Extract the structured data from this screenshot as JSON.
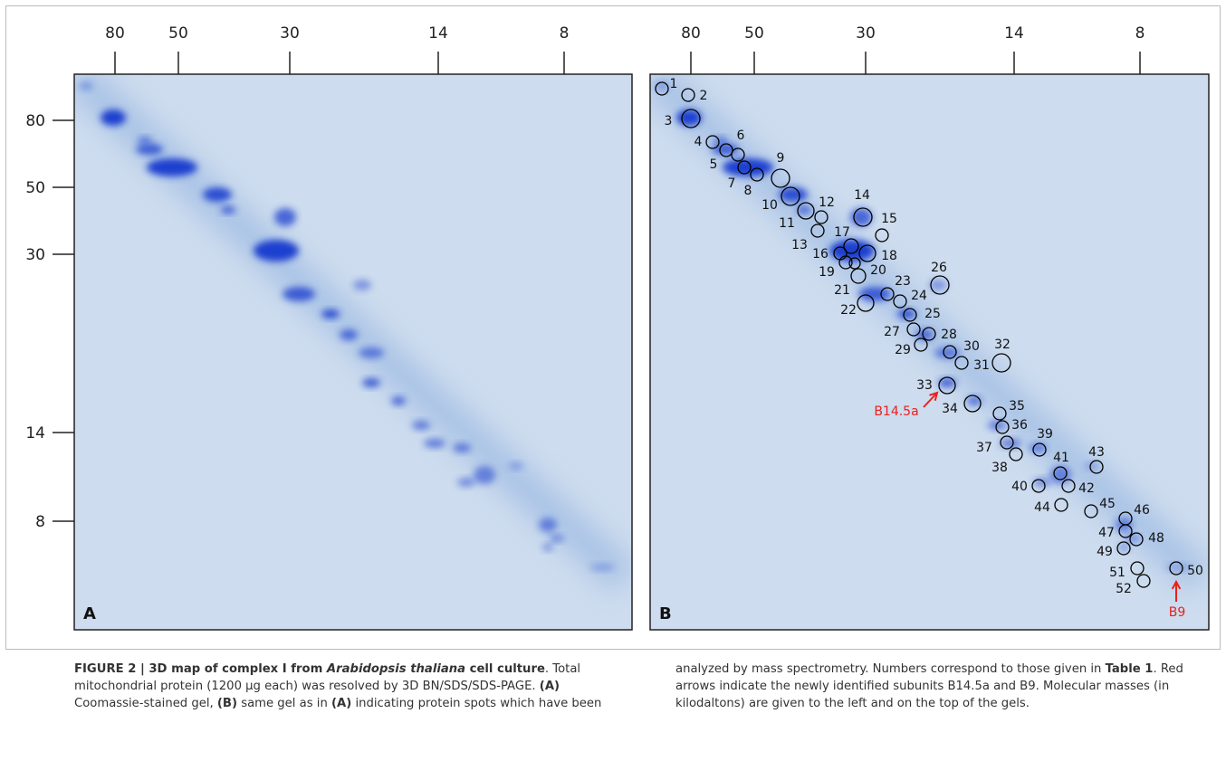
{
  "figure": {
    "top_ticks": [
      "80",
      "50",
      "30",
      "14",
      "8"
    ],
    "left_ticks": [
      "80",
      "50",
      "30",
      "14",
      "8"
    ],
    "panels": [
      {
        "label": "A"
      },
      {
        "label": "B",
        "spots": [
          "1",
          "2",
          "3",
          "4",
          "5",
          "6",
          "7",
          "8",
          "9",
          "10",
          "11",
          "12",
          "13",
          "14",
          "15",
          "16",
          "17",
          "18",
          "19",
          "20",
          "21",
          "22",
          "23",
          "24",
          "25",
          "26",
          "27",
          "28",
          "29",
          "30",
          "31",
          "32",
          "33",
          "34",
          "35",
          "36",
          "37",
          "38",
          "39",
          "40",
          "41",
          "42",
          "43",
          "44",
          "45",
          "46",
          "47",
          "48",
          "49",
          "50",
          "51",
          "52"
        ],
        "arrows": [
          "B14.5a",
          "B9"
        ]
      }
    ]
  },
  "caption": [
    "FIGURE 2 | 3D map of complex I from ",
    "Arabidopsis thaliana",
    " cell culture",
    ". Total mitochondrial protein (1200 µg each) was resolved by 3D BN/SDS/SDS-PAGE. ",
    "(A)",
    " Coomassie-stained gel, ",
    "(B)",
    " same gel as in ",
    "(A)",
    " indicating protein spots which have been analyzed by mass spectrometry. Numbers correspond to those given in ",
    "Table 1",
    ". Red arrows indicate the newly identified subunits B14.5a and B9. Molecular masses (in kilodaltons) are given to the left and on the top of the gels."
  ]
}
